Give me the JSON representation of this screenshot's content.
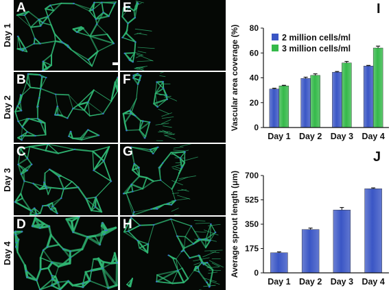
{
  "figure": {
    "row_labels": [
      "Day 1",
      "Day 2",
      "Day 3",
      "Day 4"
    ],
    "panel_letters": [
      "A",
      "B",
      "C",
      "D",
      "E",
      "F",
      "G",
      "H"
    ],
    "colors": {
      "network": "#2fb572",
      "nuclei": "#3b6fd8",
      "background": "#050805"
    }
  },
  "chart_data": [
    {
      "id": "I",
      "type": "bar",
      "panel_letter": "I",
      "categories": [
        "Day 1",
        "Day 2",
        "Day 3",
        "Day 4"
      ],
      "ylabel": "Vascular area coverage (%)",
      "xlabel": "",
      "ylim": [
        0,
        80
      ],
      "yticks": [
        "0",
        "20",
        "40",
        "60",
        "80"
      ],
      "legend_position": "top-left",
      "series": [
        {
          "name": "2 million cells/ml",
          "color": "#3a56c5",
          "values": [
            31,
            39.5,
            44.5,
            49.5
          ],
          "errors": [
            0.6,
            1.0,
            0.6,
            0.5
          ]
        },
        {
          "name": "3 million cells/ml",
          "color": "#35b94a",
          "values": [
            33.5,
            42,
            52,
            64
          ],
          "errors": [
            0.5,
            1.2,
            1.2,
            1.5
          ]
        }
      ]
    },
    {
      "id": "J",
      "type": "bar",
      "panel_letter": "J",
      "categories": [
        "Day 1",
        "Day 2",
        "Day 3",
        "Day 4"
      ],
      "ylabel": "Average sprout length (μm)",
      "xlabel": "",
      "ylim": [
        0,
        700
      ],
      "yticks": [
        "0",
        "175",
        "350",
        "525",
        "700"
      ],
      "series": [
        {
          "name": "",
          "color": "#3a56c5",
          "values": [
            145,
            312,
            452,
            605
          ],
          "errors": [
            6,
            10,
            18,
            6
          ]
        }
      ]
    }
  ]
}
